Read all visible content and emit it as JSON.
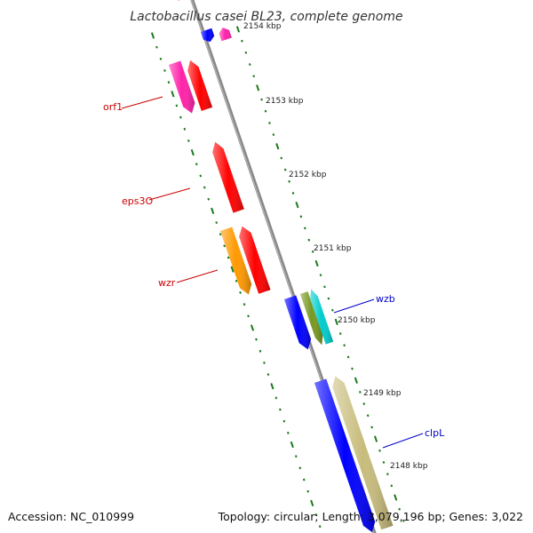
{
  "title": "Lactobacillus casei BL23, complete genome",
  "tick_labels": [
    {
      "id": "kbp-2154",
      "text": "2154 kbp"
    },
    {
      "id": "kbp-2153",
      "text": "2153 kbp"
    },
    {
      "id": "kbp-2152",
      "text": "2152 kbp"
    },
    {
      "id": "kbp-2151",
      "text": "2151 kbp"
    },
    {
      "id": "kbp-2150",
      "text": "2150 kbp"
    },
    {
      "id": "kbp-2149",
      "text": "2149 kbp"
    },
    {
      "id": "kbp-2148",
      "text": "2148 kbp"
    }
  ],
  "gene_labels": [
    {
      "id": "orf1",
      "text": "orf1",
      "color": "#cc0000"
    },
    {
      "id": "eps3O",
      "text": "eps3O",
      "color": "#cc0000"
    },
    {
      "id": "wzr",
      "text": "wzr",
      "color": "#cc0000"
    },
    {
      "id": "wzb",
      "text": "wzb",
      "color": "#0000cc"
    },
    {
      "id": "clpL",
      "text": "clpL",
      "color": "#0000cc"
    }
  ],
  "footer": {
    "accession": "Accession: NC_010999",
    "topology": "Topology: circular; Length: 3,079,196 bp; Genes: 3,022"
  },
  "colors": {
    "backbone": "#888888",
    "tick_mark": "#1a7a1a",
    "red": "#ff0000",
    "pink": "#ff22aa",
    "blue": "#0000ff",
    "orange": "#ff9900",
    "olive": "#779922",
    "cyan": "#00cccc",
    "khaki": "#c8bc7c"
  }
}
